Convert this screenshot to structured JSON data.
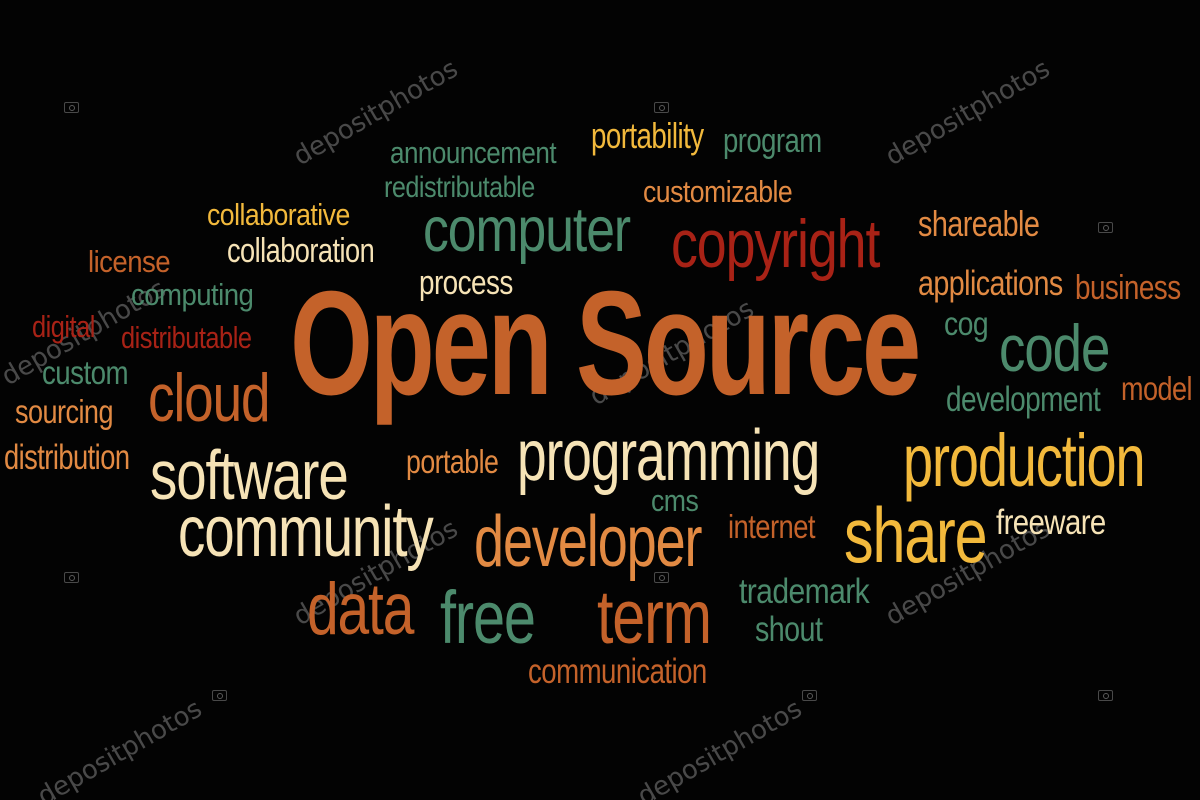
{
  "title": "Open Source",
  "watermark_text": "depositphotos",
  "palette": {
    "background": "#030303",
    "cream": "#f6e3b6",
    "yellow": "#f2b93c",
    "orange": "#e28a43",
    "rust": "#c4622a",
    "red": "#a82216",
    "green": "#4c8a6c"
  },
  "words": [
    {
      "text": "announcement",
      "color": "green"
    },
    {
      "text": "portability",
      "color": "yellow"
    },
    {
      "text": "program",
      "color": "green"
    },
    {
      "text": "redistributable",
      "color": "green"
    },
    {
      "text": "customizable",
      "color": "orange"
    },
    {
      "text": "collaborative",
      "color": "yellow"
    },
    {
      "text": "computer",
      "color": "green"
    },
    {
      "text": "shareable",
      "color": "orange"
    },
    {
      "text": "license",
      "color": "rust"
    },
    {
      "text": "collaboration",
      "color": "cream"
    },
    {
      "text": "copyright",
      "color": "red"
    },
    {
      "text": "process",
      "color": "cream"
    },
    {
      "text": "applications",
      "color": "orange"
    },
    {
      "text": "computing",
      "color": "green"
    },
    {
      "text": "business",
      "color": "rust"
    },
    {
      "text": "digital",
      "color": "red"
    },
    {
      "text": "distributable",
      "color": "red"
    },
    {
      "text": "Open Source",
      "color": "rust"
    },
    {
      "text": "cog",
      "color": "green"
    },
    {
      "text": "code",
      "color": "green"
    },
    {
      "text": "custom",
      "color": "green"
    },
    {
      "text": "cloud",
      "color": "rust"
    },
    {
      "text": "model",
      "color": "rust"
    },
    {
      "text": "sourcing",
      "color": "orange"
    },
    {
      "text": "development",
      "color": "green"
    },
    {
      "text": "distribution",
      "color": "orange"
    },
    {
      "text": "portable",
      "color": "orange"
    },
    {
      "text": "programming",
      "color": "cream"
    },
    {
      "text": "software",
      "color": "cream"
    },
    {
      "text": "production",
      "color": "yellow"
    },
    {
      "text": "cms",
      "color": "green"
    },
    {
      "text": "internet",
      "color": "rust"
    },
    {
      "text": "freeware",
      "color": "cream"
    },
    {
      "text": "community",
      "color": "cream"
    },
    {
      "text": "developer",
      "color": "orange"
    },
    {
      "text": "share",
      "color": "yellow"
    },
    {
      "text": "trademark",
      "color": "green"
    },
    {
      "text": "data",
      "color": "rust"
    },
    {
      "text": "free",
      "color": "green"
    },
    {
      "text": "term",
      "color": "rust"
    },
    {
      "text": "shout",
      "color": "green"
    },
    {
      "text": "communication",
      "color": "rust"
    }
  ]
}
